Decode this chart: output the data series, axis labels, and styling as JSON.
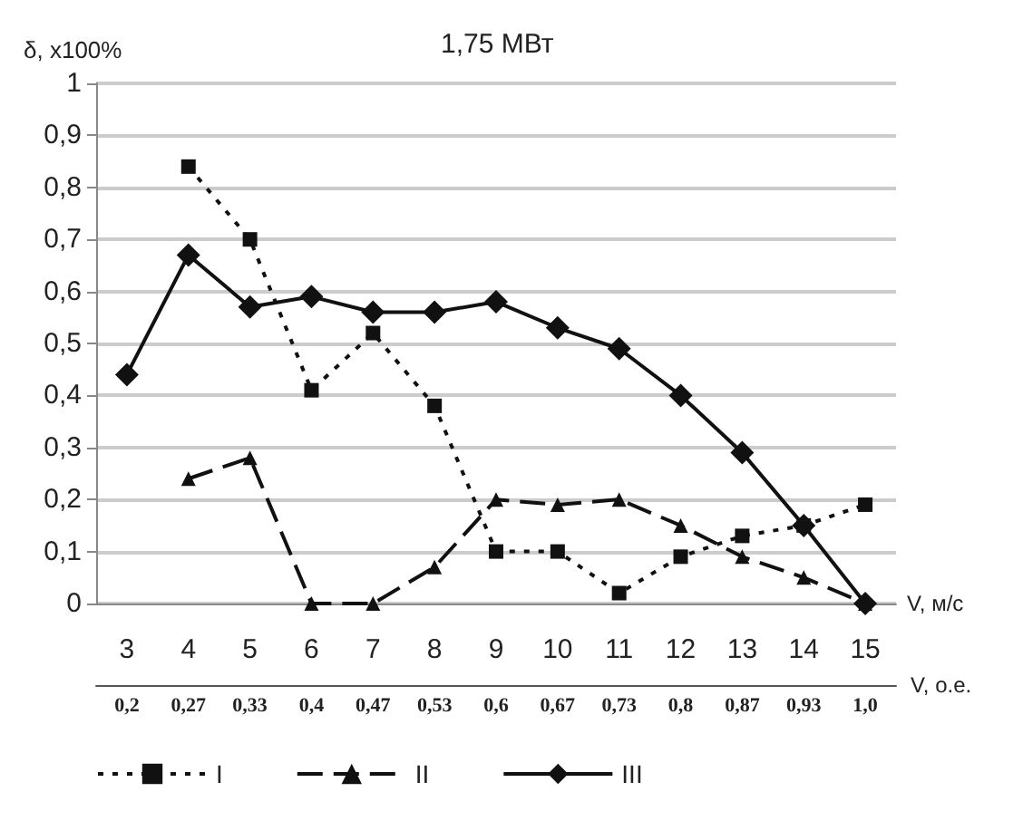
{
  "chart_data": {
    "type": "line",
    "title": "1,75 МВт",
    "ylabel": "δ, x100%",
    "xlabel": "V, м/с",
    "x2label": "V, о.е.",
    "categories": [
      "3",
      "4",
      "5",
      "6",
      "7",
      "8",
      "9",
      "10",
      "11",
      "12",
      "13",
      "14",
      "15"
    ],
    "annotations": [
      "0,2",
      "0,27",
      "0,33",
      "0,4",
      "0,47",
      "0,53",
      "0,6",
      "0,67",
      "0,73",
      "0,8",
      "0,87",
      "0,93",
      "1,0"
    ],
    "series": [
      {
        "name": "I",
        "color": "#111111",
        "marker": "square",
        "line_style": "dotted",
        "values": [
          null,
          0.84,
          0.7,
          0.41,
          0.52,
          0.38,
          0.1,
          0.1,
          0.02,
          0.09,
          0.13,
          0.15,
          0.19
        ]
      },
      {
        "name": "II",
        "color": "#111111",
        "marker": "triangle",
        "line_style": "dashed",
        "values": [
          null,
          0.24,
          0.28,
          0.0,
          0.0,
          0.07,
          0.2,
          0.19,
          0.2,
          0.15,
          0.09,
          0.05,
          0.0
        ]
      },
      {
        "name": "III",
        "color": "#111111",
        "marker": "diamond",
        "line_style": "solid",
        "values": [
          0.44,
          0.67,
          0.57,
          0.59,
          0.56,
          0.56,
          0.58,
          0.53,
          0.49,
          0.4,
          0.29,
          0.15,
          0.0
        ]
      }
    ],
    "ylim": [
      0,
      1
    ],
    "yticks": [
      0,
      {
        "value": 0.1,
        "label": "0,1"
      },
      {
        "value": 0.2,
        "label": "0,2"
      },
      {
        "value": 0.3,
        "label": "0,3"
      },
      {
        "value": 0.4,
        "label": "0,4"
      },
      {
        "value": 0.5,
        "label": "0,5"
      },
      {
        "value": 0.6,
        "label": "0,6"
      },
      {
        "value": 0.7,
        "label": "0,7"
      },
      {
        "value": 0.8,
        "label": "0,8"
      },
      {
        "value": 0.9,
        "label": "0,9"
      },
      1
    ],
    "grid": "y",
    "legend": "bottom"
  }
}
